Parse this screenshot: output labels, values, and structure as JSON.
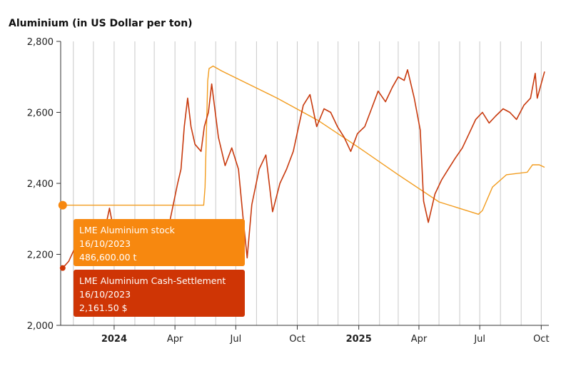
{
  "chart_data": {
    "type": "line",
    "title": "Aluminium (in US Dollar per ton)",
    "ylim": [
      2000,
      2800
    ],
    "yticks": [
      "2,000",
      "2,200",
      "2,400",
      "2,600",
      "2,800"
    ],
    "xticks": [
      {
        "label": "2024",
        "date": "2024-01-01",
        "bold": true
      },
      {
        "label": "Apr",
        "date": "2024-04-01",
        "bold": false
      },
      {
        "label": "Jul",
        "date": "2024-07-01",
        "bold": false
      },
      {
        "label": "Oct",
        "date": "2024-10-01",
        "bold": false
      },
      {
        "label": "2025",
        "date": "2025-01-01",
        "bold": true
      },
      {
        "label": "Apr",
        "date": "2025-04-01",
        "bold": false
      },
      {
        "label": "Jul",
        "date": "2025-07-01",
        "bold": false
      },
      {
        "label": "Oct",
        "date": "2025-10-01",
        "bold": false
      }
    ],
    "x_range": [
      "2023-10-13",
      "2025-10-06"
    ],
    "grid": "vertical monthly",
    "series": [
      {
        "name": "LME Aluminium Cash-Settlement",
        "color": "#c83a0e",
        "x": [
          "2023-10-16",
          "2023-10-25",
          "2023-11-05",
          "2023-11-15",
          "2023-11-25",
          "2023-12-05",
          "2023-12-15",
          "2023-12-25",
          "2024-01-05",
          "2024-01-15",
          "2024-01-25",
          "2024-02-05",
          "2024-02-15",
          "2024-02-25",
          "2024-03-05",
          "2024-03-15",
          "2024-03-25",
          "2024-04-05",
          "2024-04-10",
          "2024-04-15",
          "2024-04-20",
          "2024-04-25",
          "2024-05-01",
          "2024-05-10",
          "2024-05-15",
          "2024-05-21",
          "2024-05-26",
          "2024-06-05",
          "2024-06-15",
          "2024-06-25",
          "2024-07-05",
          "2024-07-12",
          "2024-07-18",
          "2024-07-25",
          "2024-08-05",
          "2024-08-15",
          "2024-08-25",
          "2024-09-05",
          "2024-09-15",
          "2024-09-25",
          "2024-10-03",
          "2024-10-10",
          "2024-10-20",
          "2024-10-30",
          "2024-11-10",
          "2024-11-20",
          "2024-11-30",
          "2024-12-10",
          "2024-12-20",
          "2024-12-30",
          "2025-01-10",
          "2025-01-20",
          "2025-01-30",
          "2025-02-10",
          "2025-02-20",
          "2025-03-01",
          "2025-03-10",
          "2025-03-15",
          "2025-03-25",
          "2025-04-03",
          "2025-04-08",
          "2025-04-15",
          "2025-04-25",
          "2025-05-05",
          "2025-05-15",
          "2025-05-25",
          "2025-06-05",
          "2025-06-15",
          "2025-06-25",
          "2025-07-05",
          "2025-07-15",
          "2025-07-25",
          "2025-08-05",
          "2025-08-15",
          "2025-08-25",
          "2025-09-05",
          "2025-09-15",
          "2025-09-22",
          "2025-09-25",
          "2025-10-06"
        ],
        "values": [
          2161.5,
          2180,
          2225,
          2200,
          2170,
          2200,
          2240,
          2330,
          2220,
          2180,
          2210,
          2190,
          2180,
          2170,
          2200,
          2230,
          2300,
          2400,
          2440,
          2560,
          2640,
          2560,
          2510,
          2490,
          2560,
          2600,
          2680,
          2530,
          2450,
          2500,
          2440,
          2300,
          2190,
          2340,
          2440,
          2480,
          2320,
          2400,
          2440,
          2490,
          2560,
          2620,
          2650,
          2560,
          2610,
          2600,
          2560,
          2530,
          2490,
          2540,
          2560,
          2610,
          2660,
          2630,
          2670,
          2700,
          2690,
          2720,
          2640,
          2550,
          2350,
          2290,
          2370,
          2410,
          2440,
          2470,
          2500,
          2540,
          2580,
          2600,
          2570,
          2590,
          2610,
          2600,
          2580,
          2620,
          2640,
          2710,
          2640,
          2715
        ]
      },
      {
        "name": "LME Aluminium stock",
        "color": "#f29c1e",
        "x": [
          "2023-10-16",
          "2024-05-14",
          "2024-05-16",
          "2024-05-20",
          "2024-05-22",
          "2024-05-28",
          "2024-06-10",
          "2024-09-01",
          "2024-11-01",
          "2025-01-01",
          "2025-03-01",
          "2025-05-01",
          "2025-06-29",
          "2025-07-05",
          "2025-07-20",
          "2025-08-10",
          "2025-09-10",
          "2025-09-18",
          "2025-09-28",
          "2025-10-06"
        ],
        "values": [
          486600,
          486600,
          560000,
          990000,
          1040000,
          1050000,
          1030000,
          920000,
          830000,
          720000,
          610000,
          500000,
          450000,
          465000,
          560000,
          610000,
          620000,
          650000,
          650000,
          640000
        ]
      }
    ],
    "stock_axis_note": "secondary axis not printed",
    "tooltips": [
      {
        "series": "LME Aluminium stock",
        "date": "16/10/2023",
        "value": "486,600.00 t",
        "color": "#f7880f"
      },
      {
        "series": "LME Aluminium Cash-Settlement",
        "date": "16/10/2023",
        "value": "2,161.50 $",
        "color": "#cf3505"
      }
    ]
  }
}
